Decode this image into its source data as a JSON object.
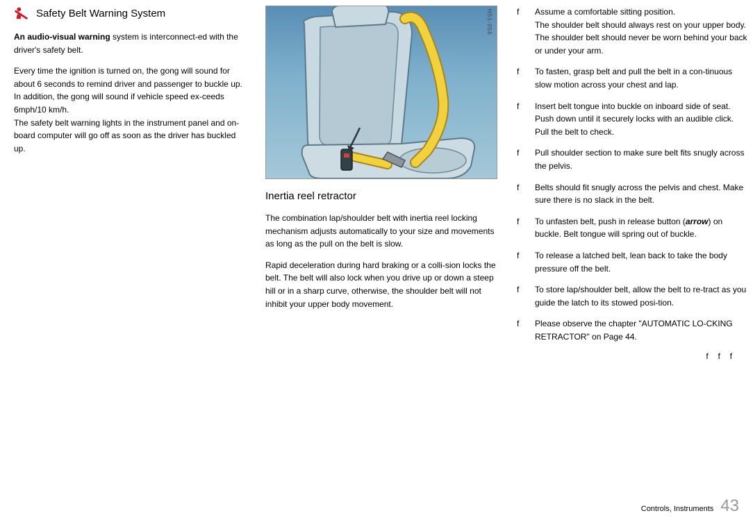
{
  "col1": {
    "heading": "Safety Belt Warning System",
    "p1_bold": "An audio-visual warning",
    "p1_rest": " system is interconnect-ed with the driver's safety belt.",
    "p2a": "Every time the ignition is turned on, the gong will sound for about 6 seconds to remind driver and passenger to buckle up.",
    "p2b": "In addition, the gong will sound if vehicle speed ex-ceeds 6mph/10 km/h.",
    "p2c": "The safety belt warning lights in the instrument panel and on-board computer will go off as soon as the driver has buckled up."
  },
  "col2": {
    "subheading": "Inertia reel retractor",
    "p1": "The combination lap/shoulder belt with inertia reel locking mechanism adjusts automatically to your size and movements as long as the pull on the belt is slow.",
    "p2": "Rapid deceleration during hard braking or a colli-sion locks the belt. The belt will also lock when you drive up or down a steep hill or in a sharp curve, otherwise, the shoulder belt will not inhibit your upper body movement.",
    "fig_tag": "H51-056"
  },
  "col3": {
    "items": [
      {
        "a": "Assume a comfortable sitting position.",
        "b": "The shoulder belt should always rest on your upper body. The shoulder belt should never be worn behind your back or under your arm."
      },
      {
        "a": "To fasten, grasp belt and pull the belt in a con-tinuous slow motion across your chest and lap."
      },
      {
        "a": "Insert belt tongue into buckle on inboard side of seat. Push down until it securely locks with an audible click. Pull the belt to check."
      },
      {
        "a": "Pull shoulder section to make sure belt fits snugly across the pelvis."
      },
      {
        "a": "Belts should fit snugly across the pelvis and chest. Make sure there is no slack in the belt."
      },
      {
        "a": "To unfasten belt, push in release button (",
        "bold": "arrow",
        "c": ") on buckle. Belt tongue will spring out of buckle."
      },
      {
        "a": "To release a latched belt, lean back to take the body pressure off the belt."
      },
      {
        "a": "To store lap/shoulder belt, allow the belt to re-tract as you guide the latch to its stowed posi-tion."
      },
      {
        "a": "Please observe the chapter \"AUTOMATIC LO-CKING RETRACTOR\" on Page 44."
      }
    ],
    "marker": "f",
    "end_markers": "fff"
  },
  "footer": {
    "label": "Controls, Instruments",
    "page": "43"
  },
  "icon_color": "#c8202f"
}
